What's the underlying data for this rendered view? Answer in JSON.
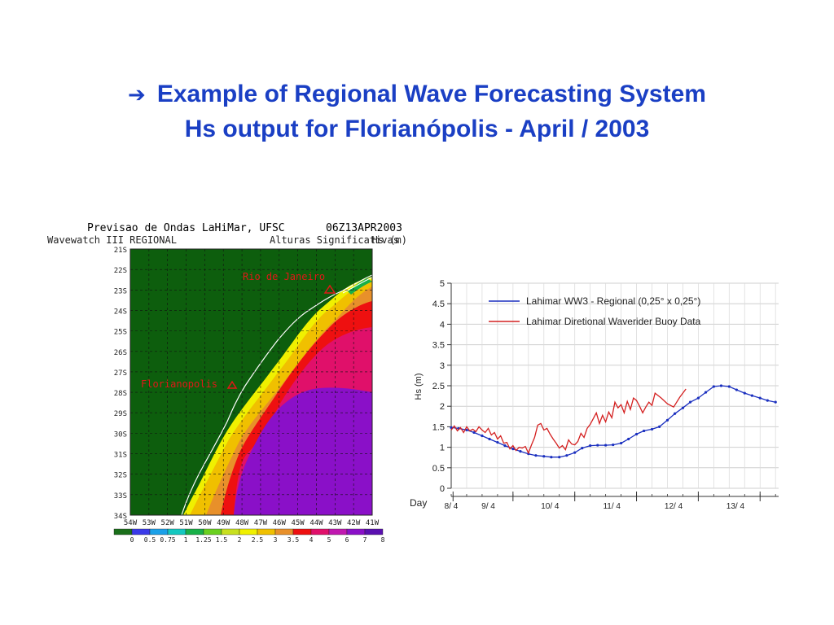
{
  "slide": {
    "arrow_icon": "right-arrow-icon",
    "title_line1": "Example of Regional Wave Forecasting System",
    "title_line2": "Hs output for Florianópolis - April / 2003",
    "title_color": "#1a3fc4"
  },
  "map": {
    "header_left": "Previsao de Ondas LaHiMar, UFSC",
    "header_right": "06Z13APR2003",
    "subheader_left": "Wavewatch III REGIONAL",
    "subheader_mid": "Alturas Significativas",
    "subheader_right": "Hs (m)",
    "lat_labels": [
      "21S",
      "22S",
      "23S",
      "24S",
      "25S",
      "26S",
      "27S",
      "28S",
      "29S",
      "30S",
      "31S",
      "32S",
      "33S",
      "34S"
    ],
    "lon_labels": [
      "54W",
      "53W",
      "52W",
      "51W",
      "50W",
      "49W",
      "48W",
      "47W",
      "46W",
      "45W",
      "44W",
      "43W",
      "42W",
      "41W"
    ],
    "city_rio": "Rio de Janeiro",
    "city_floripa": "Florianopolis",
    "colorbar_labels": [
      "0",
      "0.5",
      "0.75",
      "1",
      "1.25",
      "1.5",
      "2",
      "2.5",
      "3",
      "3.5",
      "4",
      "5",
      "6",
      "7",
      "8"
    ],
    "colorbar_colors": [
      "#1a6f1a",
      "#3a3ae8",
      "#1aa0e8",
      "#14c8c0",
      "#18b048",
      "#6ad020",
      "#c8e020",
      "#f0f000",
      "#f0c000",
      "#e8902a",
      "#ee1010",
      "#e0106a",
      "#c018b0",
      "#8a10c8",
      "#5a10b0"
    ],
    "land_color": "#0d5e0d"
  },
  "chart_data": {
    "type": "line",
    "title": "",
    "xlabel": "Day",
    "ylabel": "Hs (m)",
    "ylim": [
      0,
      5
    ],
    "yticks": [
      "0",
      "0.5",
      "1",
      "1.5",
      "2",
      "2.5",
      "3",
      "3.5",
      "4",
      "4.5",
      "5"
    ],
    "x_day_labels": [
      "8/ 4",
      "9/ 4",
      "10/ 4",
      "11/ 4",
      "12/ 4",
      "13/ 4"
    ],
    "x_day_label_pos": [
      8.0,
      8.6,
      9.6,
      10.6,
      11.6,
      12.6
    ],
    "xlim": [
      8.0,
      13.3
    ],
    "grid": true,
    "legend_position": "top-right",
    "series": [
      {
        "name": "Lahimar WW3 - Regional (0,25° x 0,25°)",
        "color": "#1a2fbf",
        "marker": "dot",
        "x": [
          8.0,
          8.12,
          8.25,
          8.37,
          8.5,
          8.62,
          8.75,
          8.87,
          9.0,
          9.12,
          9.25,
          9.37,
          9.5,
          9.62,
          9.75,
          9.87,
          10.0,
          10.12,
          10.25,
          10.37,
          10.5,
          10.62,
          10.75,
          10.87,
          11.0,
          11.12,
          11.25,
          11.37,
          11.5,
          11.62,
          11.75,
          11.87,
          12.0,
          12.12,
          12.25,
          12.37,
          12.5,
          12.62,
          12.75,
          12.87,
          13.0,
          13.12,
          13.25
        ],
        "y": [
          1.48,
          1.46,
          1.42,
          1.36,
          1.28,
          1.2,
          1.12,
          1.04,
          0.96,
          0.9,
          0.84,
          0.8,
          0.78,
          0.76,
          0.76,
          0.8,
          0.87,
          0.98,
          1.04,
          1.05,
          1.05,
          1.06,
          1.1,
          1.2,
          1.32,
          1.4,
          1.44,
          1.5,
          1.66,
          1.82,
          1.96,
          2.1,
          2.2,
          2.34,
          2.48,
          2.5,
          2.48,
          2.4,
          2.32,
          2.26,
          2.2,
          2.14,
          2.1
        ]
      },
      {
        "name": "Lahimar Diretional Waverider Buoy Data",
        "color": "#d42020",
        "marker": "none",
        "x": [
          8.0,
          8.05,
          8.1,
          8.15,
          8.2,
          8.25,
          8.3,
          8.35,
          8.4,
          8.45,
          8.5,
          8.55,
          8.6,
          8.65,
          8.7,
          8.75,
          8.8,
          8.85,
          8.9,
          8.95,
          9.0,
          9.05,
          9.1,
          9.15,
          9.2,
          9.25,
          9.3,
          9.35,
          9.4,
          9.45,
          9.5,
          9.55,
          9.6,
          9.65,
          9.7,
          9.75,
          9.8,
          9.85,
          9.9,
          9.95,
          10.0,
          10.05,
          10.1,
          10.15,
          10.2,
          10.25,
          10.3,
          10.35,
          10.4,
          10.45,
          10.5,
          10.55,
          10.6,
          10.65,
          10.7,
          10.75,
          10.8,
          10.85,
          10.9,
          10.95,
          11.0,
          11.05,
          11.1,
          11.15,
          11.2,
          11.25,
          11.3,
          11.4,
          11.5,
          11.6,
          11.7,
          11.8
        ],
        "y": [
          1.42,
          1.52,
          1.4,
          1.48,
          1.36,
          1.5,
          1.4,
          1.44,
          1.38,
          1.5,
          1.42,
          1.36,
          1.46,
          1.3,
          1.36,
          1.2,
          1.28,
          1.1,
          1.12,
          0.96,
          1.04,
          0.92,
          1.0,
          0.98,
          1.02,
          0.86,
          1.06,
          1.24,
          1.54,
          1.58,
          1.42,
          1.46,
          1.32,
          1.2,
          1.1,
          0.98,
          1.04,
          0.94,
          1.18,
          1.08,
          1.06,
          1.14,
          1.34,
          1.24,
          1.46,
          1.56,
          1.7,
          1.84,
          1.58,
          1.78,
          1.62,
          1.86,
          1.72,
          2.1,
          1.96,
          2.04,
          1.84,
          2.12,
          1.92,
          2.2,
          2.14,
          2.0,
          1.84,
          1.98,
          2.1,
          2.02,
          2.32,
          2.2,
          2.06,
          1.98,
          2.22,
          2.42
        ]
      }
    ]
  }
}
